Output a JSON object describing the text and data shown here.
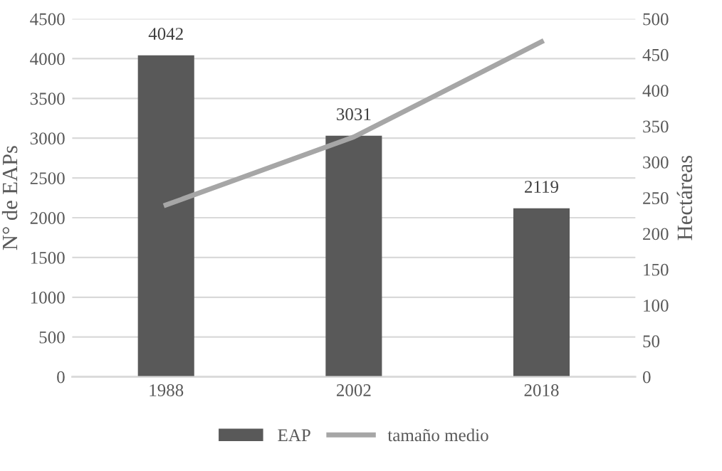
{
  "chart_data": {
    "type": "bar",
    "categories": [
      "1988",
      "2002",
      "2018"
    ],
    "ylabel": "N° de EAPs",
    "y2label": "Hectáreas",
    "series": [
      {
        "name": "EAP",
        "color": "#595959",
        "values": [
          4042,
          3031,
          2119
        ],
        "value_labels": [
          "4042",
          "3031",
          "2119"
        ]
      },
      {
        "name": "tamaño medio",
        "type": "line",
        "axis": "y2",
        "color": "#a6a6a6",
        "values": [
          240,
          335,
          468
        ]
      }
    ],
    "ylim": [
      0,
      4500
    ],
    "yticks": [
      0,
      500,
      1000,
      1500,
      2000,
      2500,
      3000,
      3500,
      4000,
      4500
    ],
    "y2lim": [
      0,
      500
    ],
    "y2ticks": [
      0,
      50,
      100,
      150,
      200,
      250,
      300,
      350,
      400,
      450,
      500
    ],
    "grid": "y",
    "legend": "bottom",
    "marker": "none",
    "line_style": "solid"
  }
}
